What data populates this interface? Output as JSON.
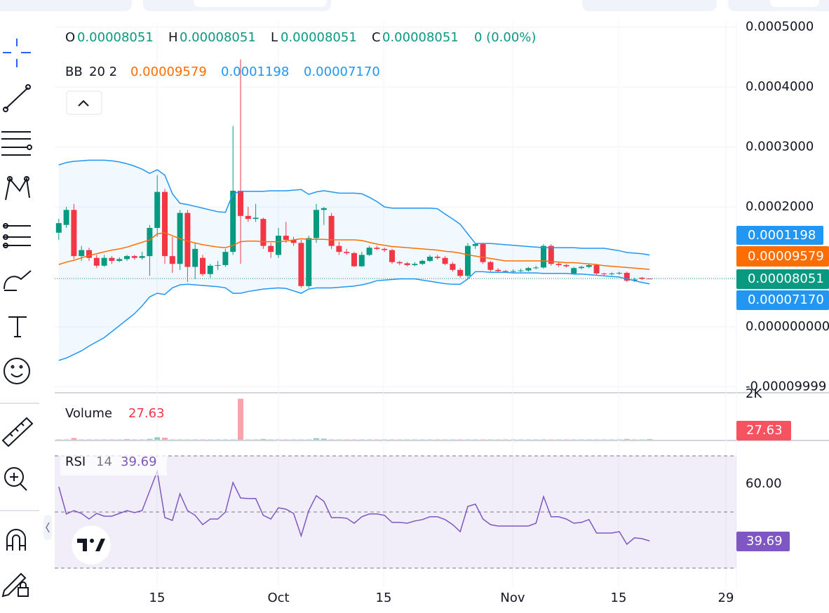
{
  "chart_data": {
    "type": "candlestick",
    "legend": {
      "o_label": "O",
      "o": 8.051e-05,
      "h_label": "H",
      "h": 8.051e-05,
      "l_label": "L",
      "l": 8.051e-05,
      "c_label": "C",
      "c": 8.051e-05,
      "change": "0 (0.00%)"
    },
    "bb_legend": {
      "name": "BB",
      "params": "20 2",
      "basis": 9.579e-05,
      "upper": 0.0001198,
      "lower": {
        "value": 7.17e-05,
        "label": "0.00007170"
      }
    },
    "volume_legend": {
      "name": "Volume",
      "value": 27.63
    },
    "rsi_legend": {
      "name": "RSI",
      "length": 14,
      "value": 39.69
    },
    "x_labels": [
      "15",
      "Oct",
      "15",
      "Nov",
      "15",
      "29"
    ],
    "ylim": [
      -0.0001076,
      0.00051
    ],
    "yticks": [
      {
        "value": 0.0005,
        "label": "0.0005000"
      },
      {
        "value": 0.0004,
        "label": "0.0004000"
      },
      {
        "value": 0.0003,
        "label": "0.0003000"
      },
      {
        "value": 0.0002,
        "label": "0.0002000"
      },
      {
        "value": 0,
        "label": "0.000000000"
      },
      -9.999e-05
    ],
    "volume_ylim": [
      0,
      2062
    ],
    "volume_yticks": [
      {
        "value": 2000,
        "label": "2K"
      }
    ],
    "rsi_ylim": [
      27.5,
      72.5
    ],
    "rsi_yticks": [
      {
        "value": 60,
        "label": "60.00"
      }
    ],
    "rsi_levels": [
      70,
      50,
      30
    ],
    "badges": {
      "upper": 0.0001198,
      "basis": 9.579e-05,
      "close": 8.051e-05,
      "lower": {
        "value": 7.17e-05,
        "label": "0.00007170"
      },
      "volume": 27.63,
      "rsi": 39.69
    },
    "up_color": "#089981",
    "down_color": "#f23645",
    "candles": [
      [
        0.000157,
        0.00018,
        0.000145,
        0.000173
      ],
      [
        0.00017,
        0.0002,
        0.000165,
        0.000195
      ],
      [
        0.000195,
        0.000205,
        0.000113,
        0.000118
      ],
      [
        0.000118,
        0.000135,
        0.00011,
        0.000128
      ],
      [
        0.000128,
        0.000132,
        0.00011,
        0.000115
      ],
      [
        0.000115,
        0.00012,
        9.8e-05,
        0.000102
      ],
      [
        0.000102,
        0.00012,
        0.0001,
        0.000115
      ],
      [
        0.000115,
        0.000118,
        0.000105,
        0.00011
      ],
      [
        0.00011,
        0.000116,
        0.000108,
        0.000113
      ],
      [
        0.000113,
        0.00012,
        0.00011,
        0.000118
      ],
      [
        0.000118,
        0.00012,
        0.000112,
        0.000115
      ],
      [
        0.000115,
        0.000125,
        0.000112,
        0.000118
      ],
      [
        0.000118,
        0.00017,
        8.5e-05,
        0.000165
      ],
      [
        0.000165,
        0.000253,
        0.00015,
        0.000225
      ],
      [
        0.000225,
        0.00023,
        0.000105,
        0.000118
      ],
      [
        0.000118,
        0.00015,
        9e-05,
        0.000105
      ],
      [
        0.000105,
        0.000195,
        9.5e-05,
        0.00019
      ],
      [
        0.00019,
        0.000195,
        7.5e-05,
        0.0001
      ],
      [
        0.0001,
        0.00014,
        8e-05,
        0.00013
      ],
      [
        0.000115,
        0.00012,
        8.5e-05,
        8.8e-05
      ],
      [
        8.8e-05,
        0.000105,
        8.2e-05,
        0.000102
      ],
      [
        0.000102,
        0.00011,
        9.5e-05,
        0.000103
      ],
      [
        0.000103,
        0.00013,
        0.0001,
        0.000125
      ],
      [
        0.000125,
        0.000335,
        0.00012,
        0.000227
      ],
      [
        0.000227,
        0.000446,
        0.000105,
        0.000185
      ],
      [
        0.000185,
        0.0002,
        0.000175,
        0.00018
      ],
      [
        0.00018,
        0.000205,
        0.000175,
        0.000182
      ],
      [
        0.00018,
        0.000182,
        0.00013,
        0.000135
      ],
      [
        0.000135,
        0.00014,
        0.000115,
        0.000125
      ],
      [
        0.00012,
        0.000165,
        0.000115,
        0.000152
      ],
      [
        0.000152,
        0.000175,
        0.00014,
        0.000145
      ],
      [
        0.000145,
        0.00015,
        0.000135,
        0.00014
      ],
      [
        0.00014,
        0.000145,
        6.5e-05,
        6.8e-05
      ],
      [
        6.8e-05,
        0.000152,
        6.5e-05,
        0.000148
      ],
      [
        0.000148,
        0.000205,
        0.00014,
        0.000195
      ],
      [
        0.000195,
        0.0002,
        0.00017,
        0.000198
      ],
      [
        0.000185,
        0.00019,
        0.00013,
        0.000135
      ],
      [
        0.000135,
        0.000142,
        0.00012,
        0.000125
      ],
      [
        0.000125,
        0.00013,
        0.00012,
        0.000123
      ],
      [
        0.000123,
        0.000125,
        0.0001,
        0.000101
      ],
      [
        0.000101,
        0.000125,
        0.0001,
        0.00012
      ],
      [
        0.00012,
        0.000135,
        0.000118,
        0.000132
      ],
      [
        0.000132,
        0.000135,
        0.000128,
        0.00013
      ],
      [
        0.00013,
        0.000132,
        0.000125,
        0.000128
      ],
      [
        0.000128,
        0.00013,
        0.000105,
        0.000108
      ],
      [
        0.000108,
        0.00011,
        0.000103,
        0.000106
      ],
      [
        0.000106,
        0.000108,
        0.000101,
        0.000103
      ],
      [
        0.000103,
        0.000108,
        0.000101,
        0.000105
      ],
      [
        0.000105,
        0.000112,
        0.000103,
        0.00011
      ],
      [
        0.00011,
        0.00012,
        0.000108,
        0.000117
      ],
      [
        0.000117,
        0.00012,
        0.000112,
        0.000115
      ],
      [
        0.000115,
        0.000118,
        0.000103,
        0.000105
      ],
      [
        0.000105,
        0.000108,
        9.2e-05,
        9.5e-05
      ],
      [
        9.5e-05,
        9.8e-05,
        8.2e-05,
        8.5e-05
      ],
      [
        8.5e-05,
        0.00014,
        8.2e-05,
        0.000135
      ],
      [
        0.000135,
        0.00014,
        0.00013,
        0.000138
      ],
      [
        0.000138,
        0.00014,
        0.000105,
        0.000108
      ],
      [
        0.000108,
        0.00011,
        9.2e-05,
        9.5e-05
      ],
      [
        9.5e-05,
        9.8e-05,
        9e-05,
        9.3e-05
      ],
      [
        9.3e-05,
        9.5e-05,
        9e-05,
        9.2e-05
      ],
      [
        9.2e-05,
        9.6e-05,
        9e-05,
        9.3e-05
      ],
      [
        9.3e-05,
        9.7e-05,
        9.1e-05,
        9.4e-05
      ],
      [
        9.4e-05,
        0.0001,
        9.2e-05,
        9.8e-05
      ],
      [
        9.8e-05,
        0.000102,
        9.6e-05,
        9.9e-05
      ],
      [
        9.9e-05,
        0.000138,
        9.7e-05,
        0.000135
      ],
      [
        0.000135,
        0.000138,
        0.000102,
        0.000105
      ],
      [
        0.000105,
        0.000108,
        0.0001,
        0.000103
      ],
      [
        0.000103,
        0.000105,
        9.9e-05,
        0.000101
      ],
      [
        8.9e-05,
        0.0001,
        8.7e-05,
        9.8e-05
      ],
      [
        9.8e-05,
        0.000102,
        9.6e-05,
        0.0001
      ],
      [
        0.0001,
        0.000105,
        9.8e-05,
        0.000103
      ],
      [
        0.000103,
        0.000105,
        8.7e-05,
        8.9e-05
      ],
      [
        8.9e-05,
        9e-05,
        8.6e-05,
        8.8e-05
      ],
      [
        8.8e-05,
        9.1e-05,
        8.6e-05,
        8.9e-05
      ],
      [
        8.9e-05,
        9.2e-05,
        8.7e-05,
        9e-05
      ],
      [
        9e-05,
        9.2e-05,
        7.5e-05,
        7.7e-05
      ],
      [
        7.7e-05,
        8.2e-05,
        7.5e-05,
        7.9e-05
      ],
      [
        8.2e-05,
        8.3e-05,
        7.8e-05,
        8e-05
      ],
      [
        8.051e-05,
        8.051e-05,
        8.051e-05,
        8.051e-05
      ]
    ],
    "bb": {
      "upper_color": "#2196f3",
      "basis_color": "#ff6d00",
      "lower_color": "#2196f3",
      "upper": [
        0.00027,
        0.000274,
        0.000276,
        0.000277,
        0.000278,
        0.000278,
        0.000278,
        0.000277,
        0.000275,
        0.000272,
        0.000268,
        0.000263,
        0.000256,
        0.000262,
        0.000253,
        0.000222,
        0.000206,
        0.000204,
        0.000201,
        0.000198,
        0.000195,
        0.000192,
        0.000191,
        0.000222,
        0.000226,
        0.000226,
        0.000226,
        0.000226,
        0.000227,
        0.000227,
        0.000227,
        0.000228,
        0.000229,
        0.000221,
        0.000225,
        0.000227,
        0.000225,
        0.000223,
        0.000223,
        0.000223,
        0.000222,
        0.000216,
        0.000209,
        0.0002,
        0.000198,
        0.000198,
        0.000198,
        0.000198,
        0.000198,
        0.000198,
        0.000197,
        0.000188,
        0.00018,
        0.000171,
        0.000155,
        0.000139,
        0.000139,
        0.000139,
        0.000138,
        0.000137,
        0.000136,
        0.000135,
        0.000134,
        0.000133,
        0.000132,
        0.000132,
        0.000132,
        0.000132,
        0.000132,
        0.000131,
        0.000131,
        0.000131,
        0.000131,
        0.000129,
        0.000127,
        0.000124,
        0.000123,
        0.000122,
        0.0001198
      ],
      "basis": [
        0.000104,
        0.000108,
        0.000111,
        0.000115,
        0.000119,
        0.000122,
        0.000125,
        0.000128,
        0.00013,
        0.000133,
        0.000137,
        0.000141,
        0.000145,
        0.000155,
        0.000157,
        0.000152,
        0.000147,
        0.000143,
        0.00014,
        0.000137,
        0.000135,
        0.000133,
        0.000132,
        0.000136,
        0.000142,
        0.000143,
        0.000143,
        0.000142,
        0.000142,
        0.000142,
        0.000143,
        0.000145,
        0.000147,
        0.000146,
        0.000146,
        0.000146,
        0.000145,
        0.000145,
        0.000145,
        0.000145,
        0.000144,
        0.000141,
        0.000138,
        0.000136,
        0.000134,
        0.000133,
        0.000132,
        0.000131,
        0.00013,
        0.000129,
        0.000128,
        0.000126,
        0.000125,
        0.000123,
        0.00012,
        0.000118,
        0.000116,
        0.000114,
        0.000112,
        0.00011,
        0.00011,
        0.00011,
        0.00011,
        0.00011,
        0.00011,
        0.000109,
        0.000108,
        0.000107,
        0.000107,
        0.000106,
        0.000105,
        0.000104,
        0.000102,
        0.000101,
        0.0001,
        9.9e-05,
        9.8e-05,
        9.7e-05,
        9.579e-05
      ],
      "lower": [
        -5.6e-05,
        -5.2e-05,
        -4.6e-05,
        -4e-05,
        -3.2e-05,
        -2.5e-05,
        -1.8e-05,
        -8e-06,
        2e-06,
        1.2e-05,
        2.2e-05,
        3.5e-05,
        5e-05,
        5.6e-05,
        5.4e-05,
        6.5e-05,
        7e-05,
        7.1e-05,
        7e-05,
        6.9e-05,
        6.8e-05,
        6.7e-05,
        6.5e-05,
        5.6e-05,
        5.6e-05,
        5.9e-05,
        6.1e-05,
        6.3e-05,
        6.4e-05,
        6.5e-05,
        6.4e-05,
        6e-05,
        5.6e-05,
        6.3e-05,
        6.5e-05,
        6.5e-05,
        6.5e-05,
        6.6e-05,
        6.7e-05,
        6.8e-05,
        7e-05,
        7.3e-05,
        7.7e-05,
        7.8e-05,
        7.9e-05,
        8e-05,
        8e-05,
        8e-05,
        7.8e-05,
        7.6e-05,
        7.4e-05,
        7.2e-05,
        7.1e-05,
        7.1e-05,
        8e-05,
        9.2e-05,
        9.2e-05,
        9.1e-05,
        9.1e-05,
        9.1e-05,
        9e-05,
        9e-05,
        9e-05,
        9e-05,
        8.9e-05,
        8.9e-05,
        8.9e-05,
        8.9e-05,
        8.8e-05,
        8.8e-05,
        8.7e-05,
        8.6e-05,
        8.5e-05,
        8.4e-05,
        8.3e-05,
        8e-05,
        7.7e-05,
        7.4e-05,
        7.17e-05
      ]
    },
    "volume": [
      15,
      15,
      80,
      15,
      15,
      15,
      15,
      15,
      15,
      30,
      15,
      15,
      40,
      110,
      90,
      15,
      15,
      15,
      15,
      15,
      15,
      15,
      15,
      15,
      1800,
      15,
      15,
      35,
      15,
      15,
      15,
      15,
      15,
      15,
      70,
      50,
      15,
      15,
      15,
      15,
      15,
      15,
      15,
      15,
      15,
      15,
      15,
      15,
      15,
      15,
      15,
      15,
      15,
      15,
      15,
      15,
      15,
      15,
      15,
      15,
      15,
      15,
      15,
      15,
      15,
      15,
      15,
      15,
      15,
      15,
      15,
      15,
      15,
      15,
      15,
      35,
      15,
      15,
      27.63
    ],
    "rsi_color": "#7e57c2",
    "rsi": [
      59,
      49.3,
      50.5,
      49.5,
      47.5,
      49.5,
      48.5,
      48.5,
      49.5,
      50.5,
      49.8,
      50.5,
      57.5,
      64.5,
      48,
      47,
      56.5,
      50.5,
      48.8,
      45.5,
      47.5,
      47.5,
      50,
      60.5,
      55,
      54.8,
      54.8,
      48.8,
      47.5,
      51.5,
      51,
      49.5,
      41.5,
      50.5,
      55.8,
      53.8,
      48,
      48,
      47.8,
      46,
      48.3,
      49.3,
      49.3,
      48.8,
      46.3,
      46.3,
      46,
      46.8,
      47.3,
      48.3,
      48.3,
      47.3,
      45.5,
      43,
      52,
      52.8,
      47.5,
      45.5,
      45,
      45,
      45,
      45,
      45,
      46,
      55.5,
      48.3,
      48.3,
      47.5,
      46,
      46.3,
      47.3,
      42.5,
      42.5,
      42.5,
      43,
      38.5,
      40.8,
      40.5,
      39.69
    ]
  }
}
